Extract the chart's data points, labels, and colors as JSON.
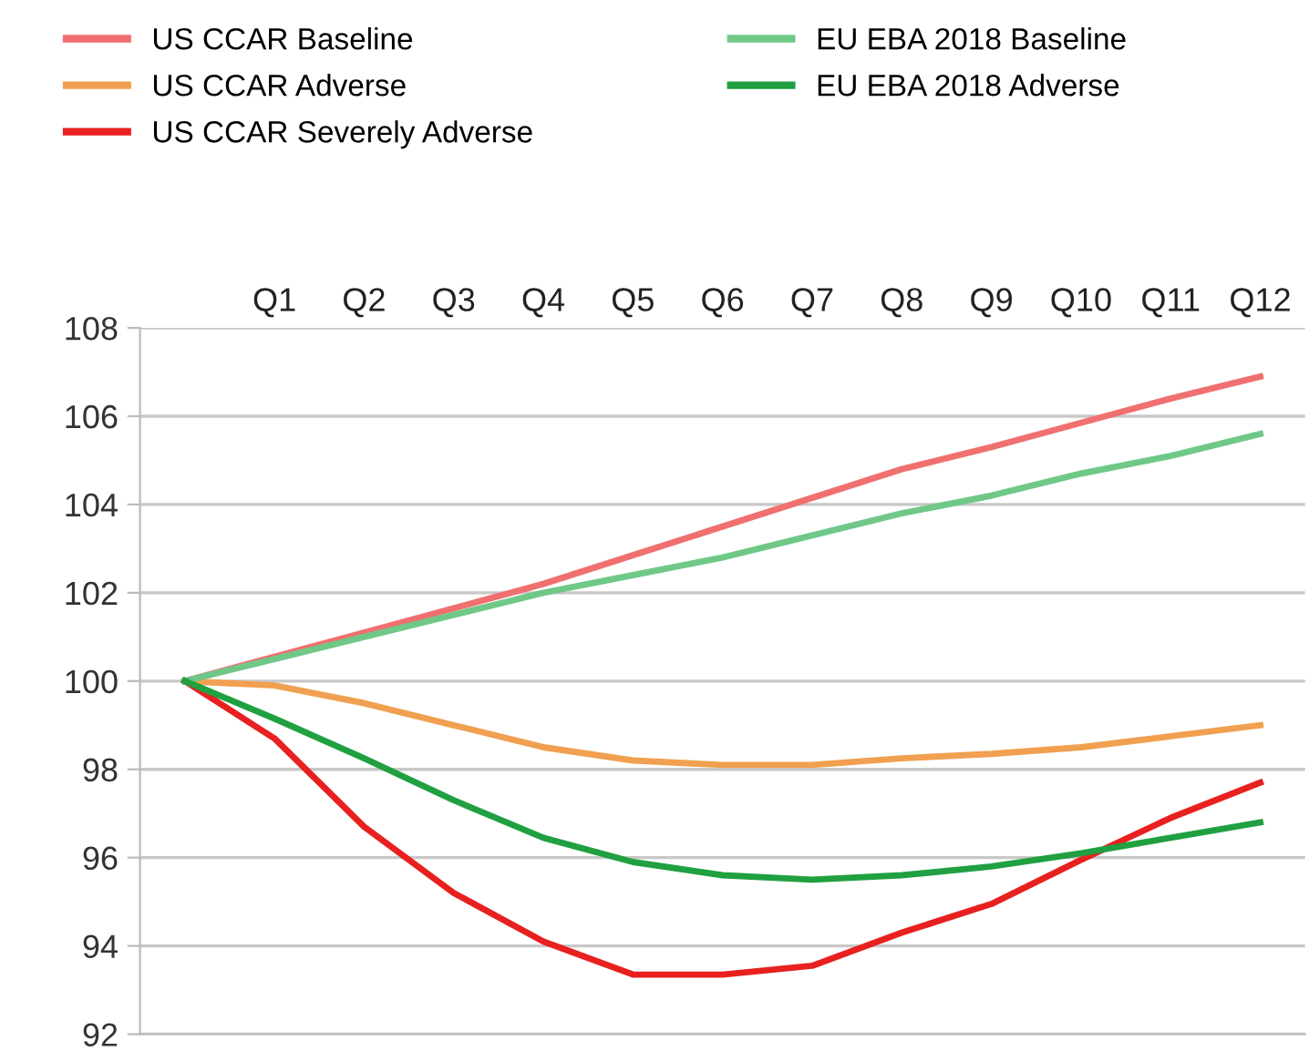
{
  "chart_data": {
    "type": "line",
    "categories": [
      null,
      "Q1",
      "Q2",
      "Q3",
      "Q4",
      "Q5",
      "Q6",
      "Q7",
      "Q8",
      "Q9",
      "Q10",
      "Q11",
      "Q12"
    ],
    "ylim": [
      92,
      108
    ],
    "yticks": [
      92,
      94,
      96,
      98,
      100,
      102,
      104,
      106,
      108
    ],
    "grid": "y",
    "legend": "top",
    "marker": "none",
    "line_style": "solid",
    "series": [
      {
        "name": "US CCAR Baseline",
        "color": "#f07070",
        "values": [
          100,
          100.55,
          101.1,
          101.65,
          102.2,
          102.85,
          103.5,
          104.15,
          104.8,
          105.3,
          105.85,
          106.4,
          106.9
        ]
      },
      {
        "name": "US CCAR Adverse",
        "color": "#f0a050",
        "values": [
          100,
          99.9,
          99.5,
          99.0,
          98.5,
          98.2,
          98.1,
          98.1,
          98.25,
          98.35,
          98.5,
          98.75,
          99.0
        ]
      },
      {
        "name": "US CCAR Severely Adverse",
        "color": "#e82020",
        "values": [
          100,
          98.7,
          96.7,
          95.2,
          94.1,
          93.35,
          93.35,
          93.55,
          94.3,
          94.95,
          95.95,
          96.9,
          97.7
        ]
      },
      {
        "name": "EU EBA 2018 Baseline",
        "color": "#70c888",
        "values": [
          100,
          100.5,
          101.0,
          101.5,
          102.0,
          102.4,
          102.8,
          103.3,
          103.8,
          104.2,
          104.7,
          105.1,
          105.6
        ]
      },
      {
        "name": "EU EBA 2018 Adverse",
        "color": "#20a040",
        "values": [
          100,
          99.15,
          98.25,
          97.3,
          96.45,
          95.9,
          95.6,
          95.5,
          95.6,
          95.8,
          96.1,
          96.45,
          96.8
        ]
      }
    ]
  }
}
